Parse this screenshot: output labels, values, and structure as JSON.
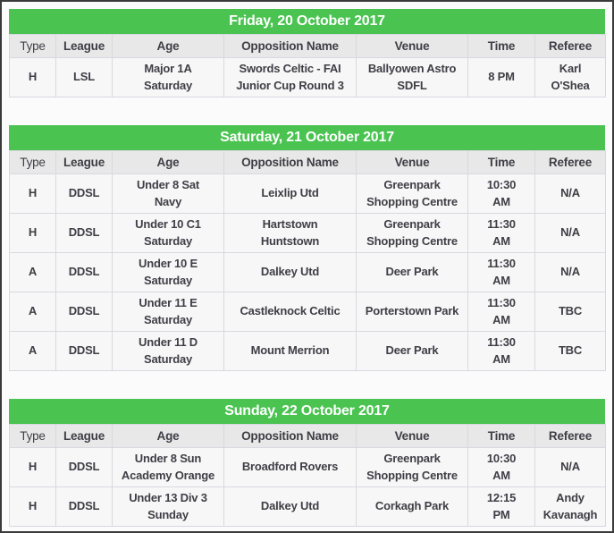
{
  "colors": {
    "day_header_bg": "#4ac351",
    "day_header_text": "#ffffff",
    "column_header_bg": "#e8e8e8",
    "row_bg": "#f7f7f7",
    "cell_border": "#d9d8e0",
    "text": "#3f3e46",
    "frame_border": "#3a3a3a",
    "page_bg": "#fbfbfb"
  },
  "columns": [
    "Type",
    "League",
    "Age",
    "Opposition Name",
    "Venue",
    "Time",
    "Referee"
  ],
  "sections": [
    {
      "title": "Friday, 20 October 2017",
      "rows": [
        [
          "H",
          "LSL",
          "Major 1A\nSaturday",
          "Swords Celtic - FAI\nJunior Cup Round 3",
          "Ballyowen Astro\nSDFL",
          "8 PM",
          "Karl O'Shea"
        ]
      ]
    },
    {
      "title": "Saturday, 21 October 2017",
      "rows": [
        [
          "H",
          "DDSL",
          "Under 8 Sat\nNavy",
          "Leixlip Utd",
          "Greenpark\nShopping Centre",
          "10:30\nAM",
          "N/A"
        ],
        [
          "H",
          "DDSL",
          "Under 10 C1\nSaturday",
          "Hartstown\nHuntstown",
          "Greenpark\nShopping Centre",
          "11:30\nAM",
          "N/A"
        ],
        [
          "A",
          "DDSL",
          "Under 10 E\nSaturday",
          "Dalkey Utd",
          "Deer Park",
          "11:30\nAM",
          "N/A"
        ],
        [
          "A",
          "DDSL",
          "Under 11 E\nSaturday",
          "Castleknock Celtic",
          "Porterstown Park",
          "11:30\nAM",
          "TBC"
        ],
        [
          "A",
          "DDSL",
          "Under 11 D\nSaturday",
          "Mount Merrion",
          "Deer Park",
          "11:30\nAM",
          "TBC"
        ]
      ]
    },
    {
      "title": "Sunday, 22 October 2017",
      "rows": [
        [
          "H",
          "DDSL",
          "Under 8 Sun\nAcademy Orange",
          "Broadford Rovers",
          "Greenpark\nShopping Centre",
          "10:30\nAM",
          "N/A"
        ],
        [
          "H",
          "DDSL",
          "Under 13 Div 3\nSunday",
          "Dalkey Utd",
          "Corkagh Park",
          "12:15\nPM",
          "Andy\nKavanagh"
        ]
      ]
    }
  ]
}
